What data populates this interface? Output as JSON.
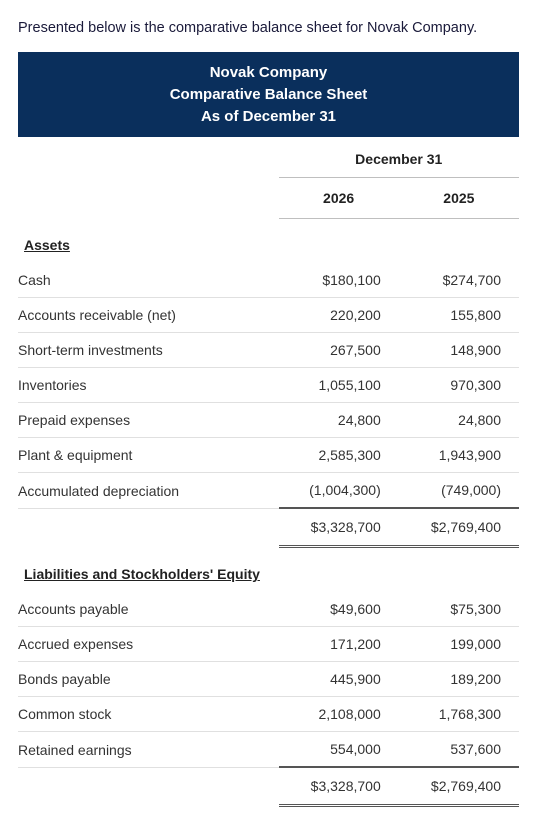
{
  "intro": "Presented below is the comparative balance sheet for Novak Company.",
  "header": {
    "company": "Novak Company",
    "title": "Comparative Balance Sheet",
    "asof": "As of December 31",
    "bg_color": "#0a2f5c",
    "fg_color": "#ffffff"
  },
  "columns": {
    "period_label": "December 31",
    "year1": "2026",
    "year2": "2025"
  },
  "sections": {
    "assets_label": "Assets",
    "liab_label": "Liabilities and Stockholders' Equity"
  },
  "assets": {
    "cash": {
      "label": "Cash",
      "y1": "$180,100",
      "y2": "$274,700"
    },
    "ar": {
      "label": "Accounts receivable (net)",
      "y1": "220,200",
      "y2": "155,800"
    },
    "sti": {
      "label": "Short-term investments",
      "y1": "267,500",
      "y2": "148,900"
    },
    "inv": {
      "label": "Inventories",
      "y1": "1,055,100",
      "y2": "970,300"
    },
    "prepaid": {
      "label": "Prepaid expenses",
      "y1": "24,800",
      "y2": "24,800"
    },
    "pe": {
      "label": "Plant & equipment",
      "y1": "2,585,300",
      "y2": "1,943,900"
    },
    "accdep": {
      "label": "Accumulated depreciation",
      "y1": "(1,004,300)",
      "y2": "(749,000)"
    },
    "total": {
      "y1": "$3,328,700",
      "y2": "$2,769,400"
    }
  },
  "liab": {
    "ap": {
      "label": "Accounts payable",
      "y1": "$49,600",
      "y2": "$75,300"
    },
    "accexp": {
      "label": "Accrued expenses",
      "y1": "171,200",
      "y2": "199,000"
    },
    "bonds": {
      "label": "Bonds payable",
      "y1": "445,900",
      "y2": "189,200"
    },
    "common": {
      "label": "Common stock",
      "y1": "2,108,000",
      "y2": "1,768,300"
    },
    "retained": {
      "label": "Retained earnings",
      "y1": "554,000",
      "y2": "537,600"
    },
    "total": {
      "y1": "$3,328,700",
      "y2": "$2,769,400"
    }
  }
}
